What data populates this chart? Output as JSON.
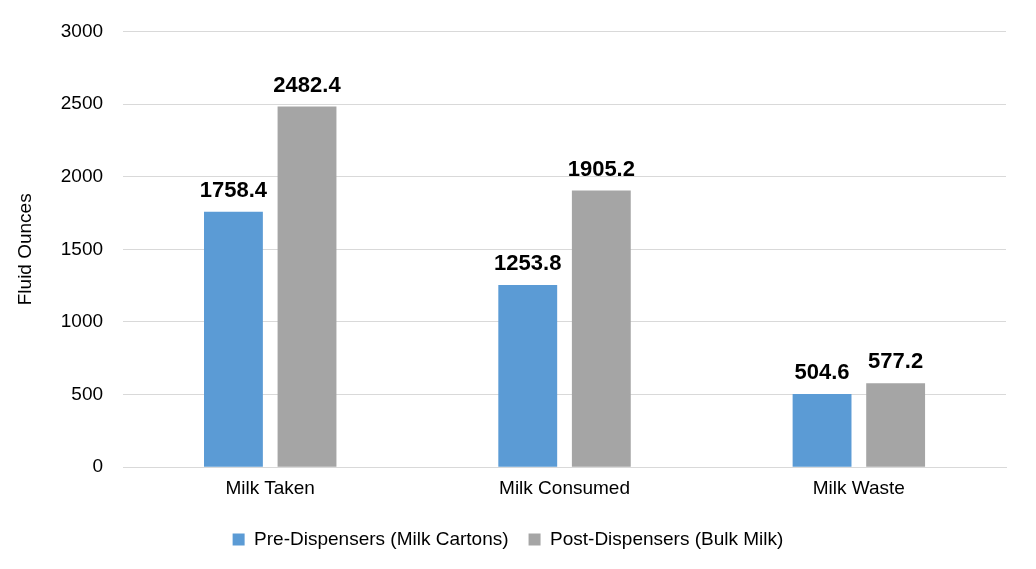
{
  "chart_data": {
    "type": "bar",
    "ylabel": "Fluid Ounces",
    "categories": [
      "Milk Taken",
      "Milk Consumed",
      "Milk Waste"
    ],
    "series": [
      {
        "name": "Pre-Dispensers (Milk Cartons)",
        "color": "#5b9bd5",
        "values": [
          1758.4,
          1253.8,
          504.6
        ]
      },
      {
        "name": "Post-Dispensers (Bulk Milk)",
        "color": "#a5a5a5",
        "values": [
          2482.4,
          1905.2,
          577.2
        ]
      }
    ],
    "ylim": [
      0,
      3000
    ],
    "yticks": [
      0,
      500,
      1000,
      1500,
      2000,
      2500,
      3000
    ],
    "grid": "y",
    "legend": "bottom",
    "data_labels": true
  }
}
